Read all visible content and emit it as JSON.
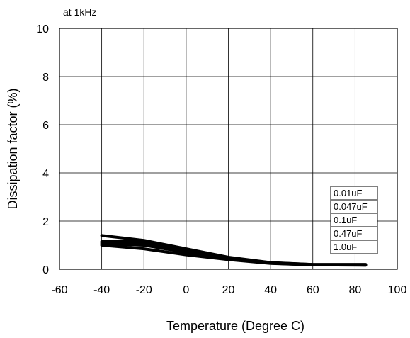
{
  "chart_data": {
    "type": "line",
    "annotation": "at 1kHz",
    "xlabel": "Temperature (Degree C)",
    "ylabel": "Dissipation factor (%)",
    "xlim": [
      -60,
      100
    ],
    "ylim": [
      0,
      10
    ],
    "x_ticks": [
      -60,
      -40,
      -20,
      0,
      20,
      40,
      60,
      80,
      100
    ],
    "y_ticks": [
      0,
      2,
      4,
      6,
      8,
      10
    ],
    "grid": true,
    "legend_position": "right-center",
    "series_color": "#000000",
    "x": [
      -40,
      -20,
      0,
      20,
      40,
      60,
      85
    ],
    "series": [
      {
        "name": "0.01uF",
        "values": [
          1.4,
          1.2,
          0.85,
          0.5,
          0.28,
          0.2,
          0.2
        ]
      },
      {
        "name": "0.047uF",
        "values": [
          1.15,
          1.15,
          0.8,
          0.48,
          0.27,
          0.2,
          0.2
        ]
      },
      {
        "name": "0.1uF",
        "values": [
          1.1,
          1.1,
          0.75,
          0.45,
          0.26,
          0.19,
          0.18
        ]
      },
      {
        "name": "0.47uF",
        "values": [
          1.05,
          1.0,
          0.7,
          0.42,
          0.25,
          0.18,
          0.17
        ]
      },
      {
        "name": "1.0uF",
        "values": [
          1.0,
          0.85,
          0.6,
          0.4,
          0.24,
          0.18,
          0.17
        ]
      }
    ]
  }
}
